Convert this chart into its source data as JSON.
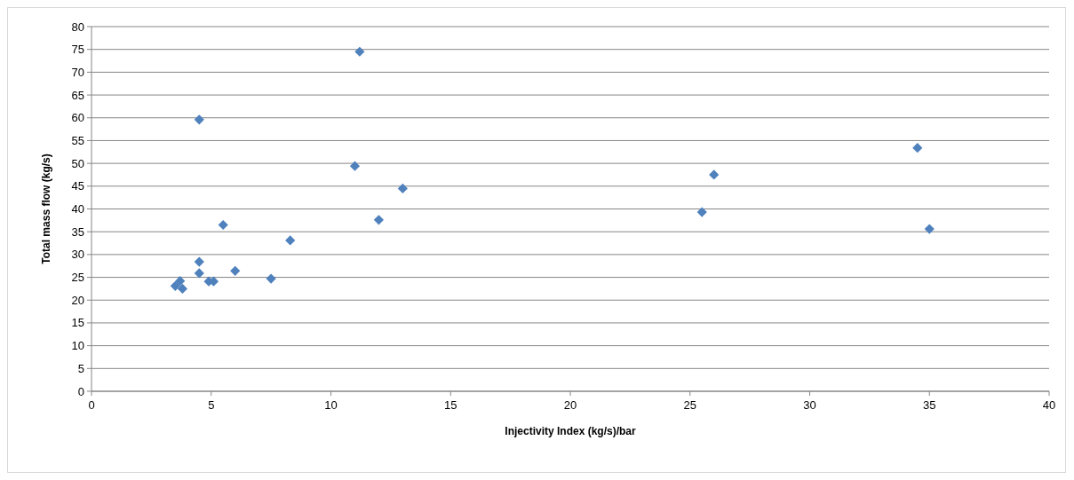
{
  "chart_data": {
    "type": "scatter",
    "xlabel": "Injectivity Index (kg/s)/bar",
    "ylabel": "Total mass flow  (kg/s)",
    "marker": "diamond",
    "grid": "y",
    "xlim": [
      0,
      40
    ],
    "xticks": [
      0,
      5,
      10,
      15,
      20,
      25,
      30,
      35,
      40
    ],
    "ylim": [
      0,
      80
    ],
    "yticks": [
      0,
      5,
      10,
      15,
      20,
      25,
      30,
      35,
      40,
      45,
      50,
      55,
      60,
      65,
      70,
      75,
      80
    ],
    "series": [
      {
        "color": "#4f81bd",
        "x": [
          11.2,
          4.5,
          34.5,
          11,
          26,
          13,
          25.5,
          12,
          5.5,
          35,
          8.3,
          4.5,
          6,
          4.5,
          7.5,
          4.9,
          5.1,
          3.5,
          3.7,
          3.8
        ],
        "values": [
          74.5,
          59.6,
          53.4,
          49.4,
          47.5,
          44.5,
          39.3,
          37.6,
          36.5,
          35.6,
          33.1,
          28.4,
          26.4,
          25.9,
          24.7,
          24.1,
          24.1,
          23.1,
          24.2,
          22.5
        ]
      }
    ]
  }
}
